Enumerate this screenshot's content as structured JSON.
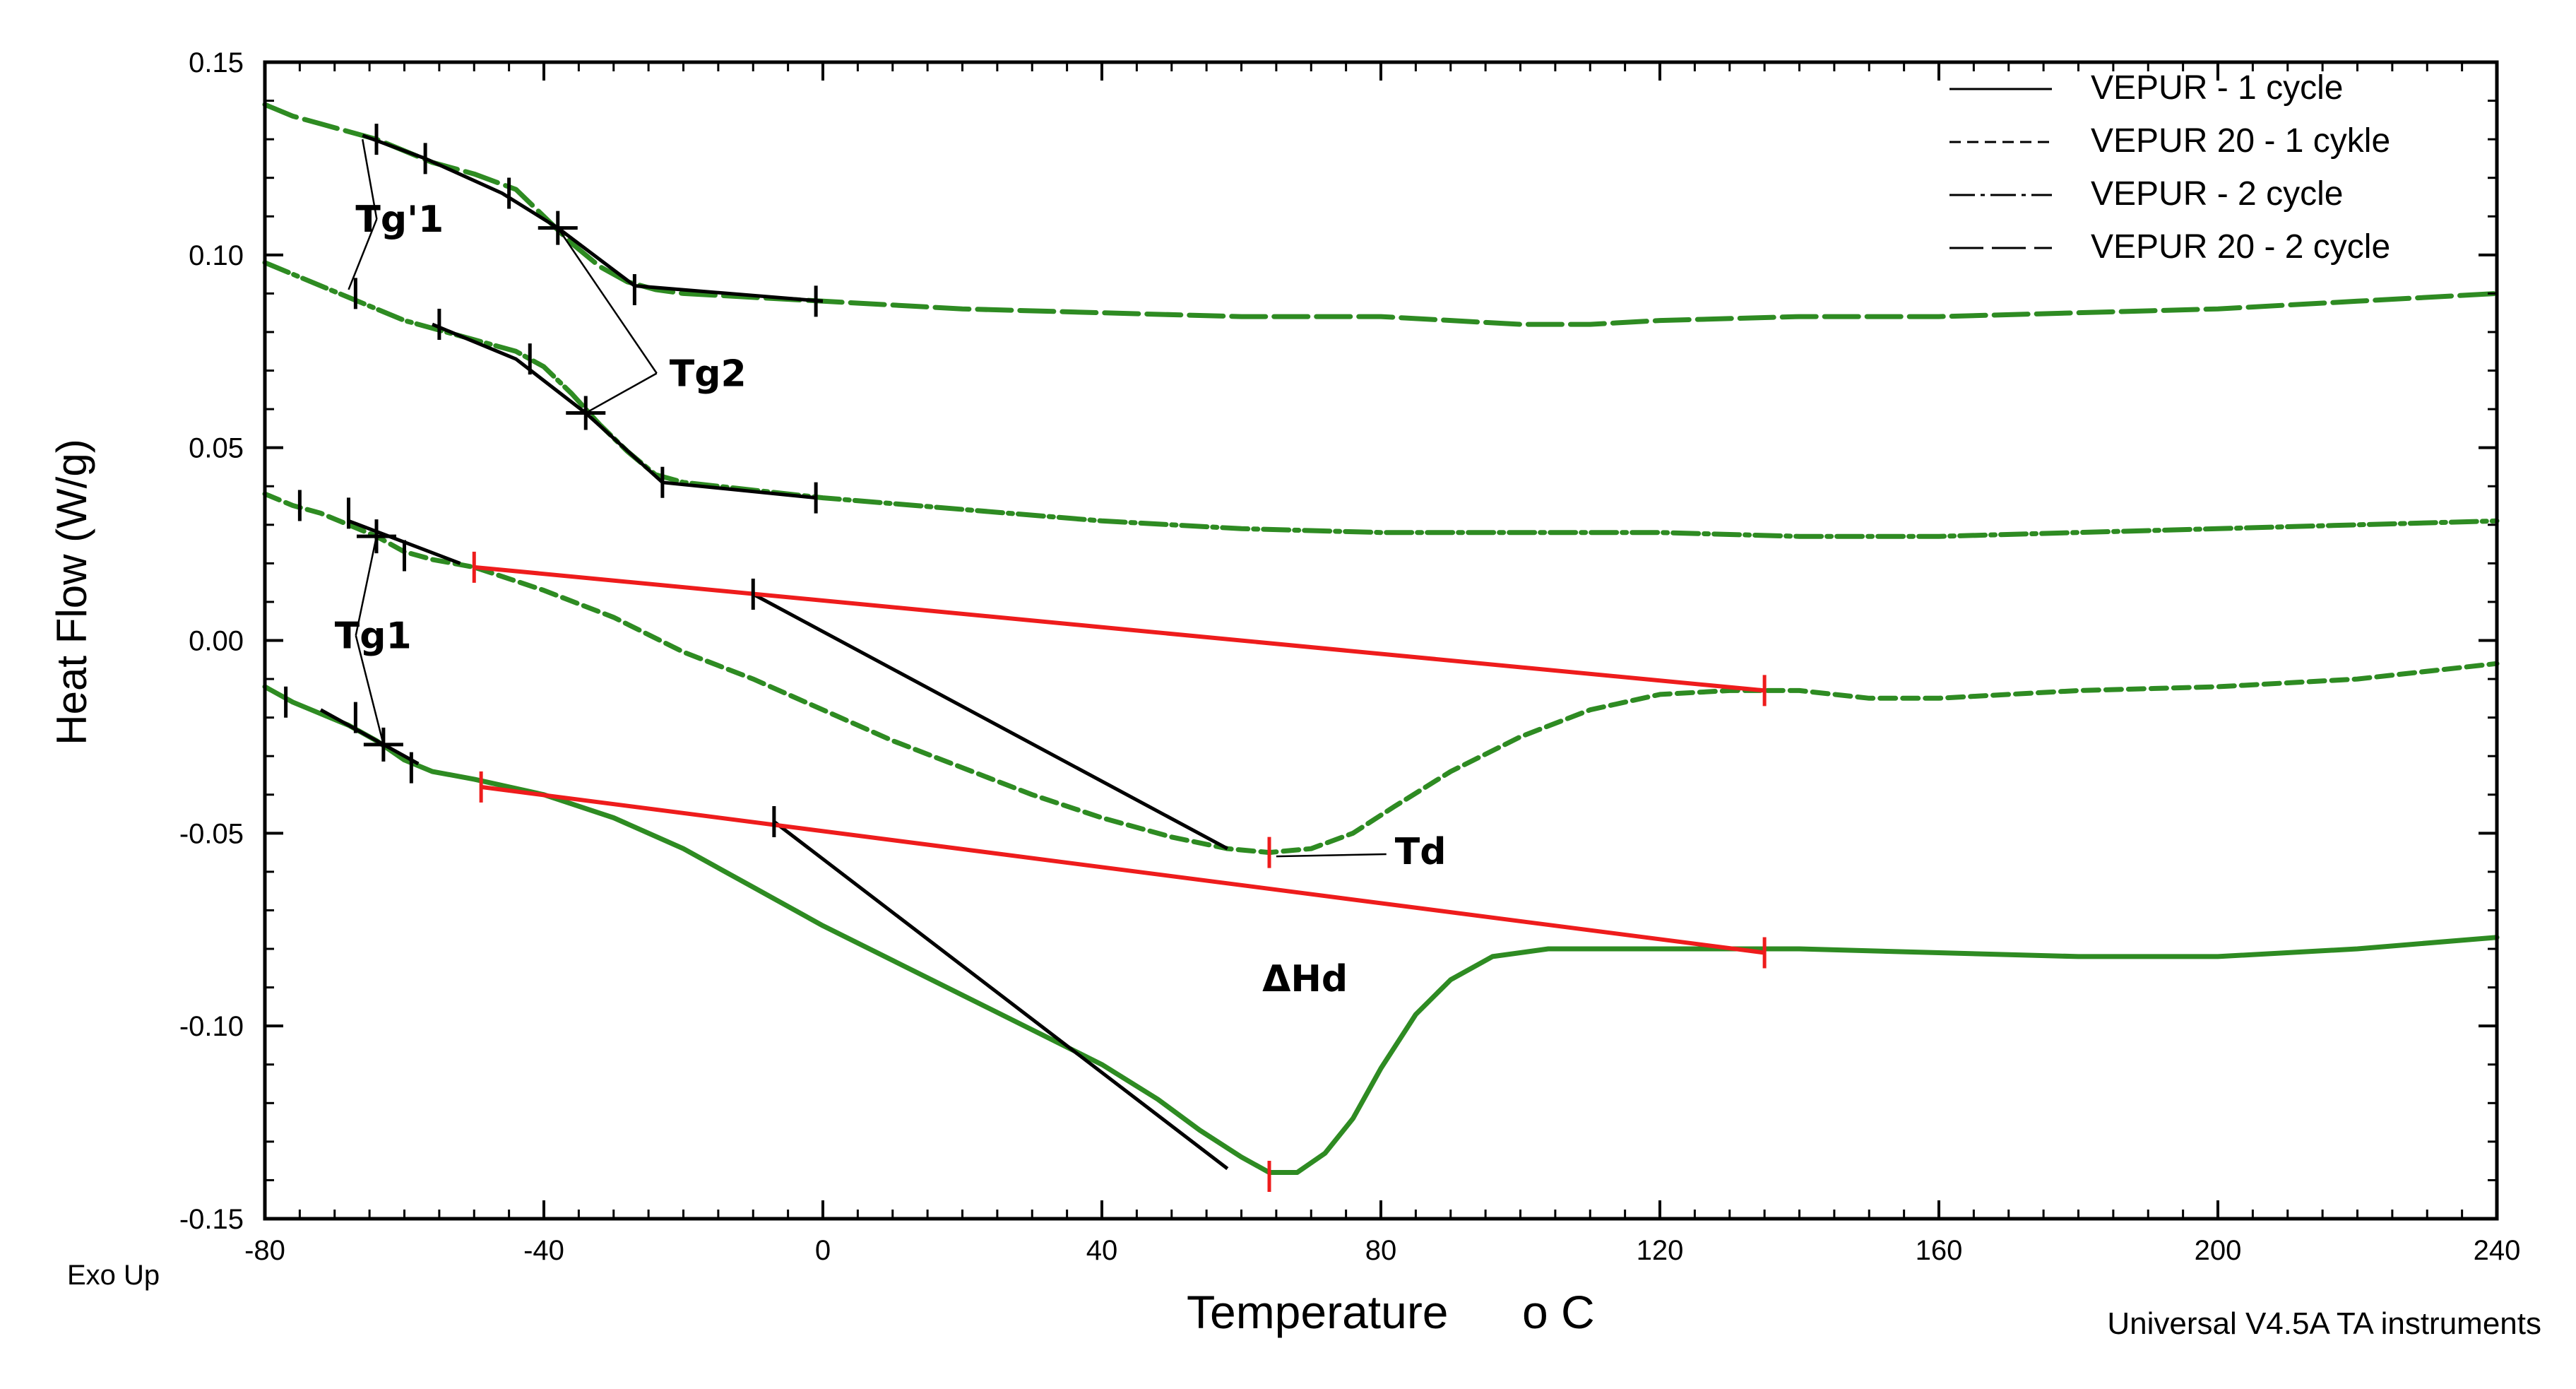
{
  "chart_data": {
    "type": "line",
    "title": "",
    "xlabel": "Temperature",
    "xlabel_unit": "o C",
    "ylabel": "Heat Flow (W/g)",
    "corner_label": "Exo Up",
    "footer": "Universal V4.5A TA instruments",
    "xlim": [
      -80,
      240
    ],
    "ylim": [
      -0.15,
      0.15
    ],
    "x_ticks": [
      -80,
      -40,
      0,
      40,
      80,
      120,
      160,
      200,
      240
    ],
    "x_tick_labels": [
      "-80",
      "-40",
      "0",
      "40",
      "80",
      "120",
      "160",
      "200",
      "240"
    ],
    "y_ticks": [
      0.15,
      0.1,
      0.05,
      0.0,
      -0.05,
      -0.1,
      -0.15
    ],
    "y_tick_labels": [
      "0.15",
      "0.10",
      "0.05",
      "0.00",
      "-0.05",
      "-0.10",
      "-0.15"
    ],
    "legend_position": "top-right",
    "series_color": "#2e8b22",
    "construction_color": "#000000",
    "baseline_color": "#ee1c1c",
    "series": [
      {
        "name": "VEPUR  - 1 cycle",
        "dash": "solid",
        "points": [
          [
            -80,
            -0.012
          ],
          [
            -76,
            -0.016
          ],
          [
            -72,
            -0.019
          ],
          [
            -68,
            -0.022
          ],
          [
            -64,
            -0.026
          ],
          [
            -60,
            -0.031
          ],
          [
            -56,
            -0.034
          ],
          [
            -50,
            -0.036
          ],
          [
            -40,
            -0.04
          ],
          [
            -30,
            -0.046
          ],
          [
            -20,
            -0.054
          ],
          [
            -10,
            -0.064
          ],
          [
            0,
            -0.074
          ],
          [
            10,
            -0.083
          ],
          [
            20,
            -0.092
          ],
          [
            30,
            -0.101
          ],
          [
            40,
            -0.11
          ],
          [
            48,
            -0.119
          ],
          [
            54,
            -0.127
          ],
          [
            60,
            -0.134
          ],
          [
            64,
            -0.138
          ],
          [
            68,
            -0.138
          ],
          [
            72,
            -0.133
          ],
          [
            76,
            -0.124
          ],
          [
            80,
            -0.111
          ],
          [
            85,
            -0.097
          ],
          [
            90,
            -0.088
          ],
          [
            96,
            -0.082
          ],
          [
            104,
            -0.08
          ],
          [
            120,
            -0.08
          ],
          [
            140,
            -0.08
          ],
          [
            160,
            -0.081
          ],
          [
            180,
            -0.082
          ],
          [
            200,
            -0.082
          ],
          [
            220,
            -0.08
          ],
          [
            240,
            -0.077
          ]
        ]
      },
      {
        "name": "VEPUR 20 - 1 cykle",
        "dash": "dashed",
        "points": [
          [
            -80,
            0.038
          ],
          [
            -76,
            0.035
          ],
          [
            -72,
            0.033
          ],
          [
            -68,
            0.03
          ],
          [
            -64,
            0.027
          ],
          [
            -60,
            0.023
          ],
          [
            -56,
            0.021
          ],
          [
            -50,
            0.019
          ],
          [
            -40,
            0.013
          ],
          [
            -30,
            0.006
          ],
          [
            -20,
            -0.003
          ],
          [
            -10,
            -0.01
          ],
          [
            0,
            -0.018
          ],
          [
            10,
            -0.026
          ],
          [
            20,
            -0.033
          ],
          [
            30,
            -0.04
          ],
          [
            40,
            -0.046
          ],
          [
            50,
            -0.051
          ],
          [
            58,
            -0.054
          ],
          [
            64,
            -0.055
          ],
          [
            70,
            -0.054
          ],
          [
            76,
            -0.05
          ],
          [
            82,
            -0.043
          ],
          [
            90,
            -0.034
          ],
          [
            100,
            -0.025
          ],
          [
            110,
            -0.018
          ],
          [
            120,
            -0.014
          ],
          [
            130,
            -0.013
          ],
          [
            140,
            -0.013
          ],
          [
            150,
            -0.015
          ],
          [
            160,
            -0.015
          ],
          [
            180,
            -0.013
          ],
          [
            200,
            -0.012
          ],
          [
            220,
            -0.01
          ],
          [
            240,
            -0.006
          ]
        ]
      },
      {
        "name": "VEPUR - 2 cycle",
        "dash": "dash-dot",
        "points": [
          [
            -80,
            0.098
          ],
          [
            -76,
            0.095
          ],
          [
            -72,
            0.092
          ],
          [
            -68,
            0.089
          ],
          [
            -64,
            0.086
          ],
          [
            -60,
            0.083
          ],
          [
            -56,
            0.081
          ],
          [
            -50,
            0.078
          ],
          [
            -44,
            0.075
          ],
          [
            -40,
            0.071
          ],
          [
            -36,
            0.064
          ],
          [
            -32,
            0.056
          ],
          [
            -28,
            0.049
          ],
          [
            -24,
            0.043
          ],
          [
            -20,
            0.041
          ],
          [
            -10,
            0.039
          ],
          [
            0,
            0.037
          ],
          [
            20,
            0.034
          ],
          [
            40,
            0.031
          ],
          [
            60,
            0.029
          ],
          [
            80,
            0.028
          ],
          [
            100,
            0.028
          ],
          [
            120,
            0.028
          ],
          [
            140,
            0.027
          ],
          [
            160,
            0.027
          ],
          [
            180,
            0.028
          ],
          [
            200,
            0.029
          ],
          [
            220,
            0.03
          ],
          [
            240,
            0.031
          ]
        ]
      },
      {
        "name": "VEPUR  20 - 2 cycle",
        "dash": "long-dash",
        "points": [
          [
            -80,
            0.139
          ],
          [
            -76,
            0.136
          ],
          [
            -72,
            0.134
          ],
          [
            -68,
            0.132
          ],
          [
            -64,
            0.13
          ],
          [
            -60,
            0.127
          ],
          [
            -56,
            0.124
          ],
          [
            -50,
            0.121
          ],
          [
            -44,
            0.117
          ],
          [
            -40,
            0.11
          ],
          [
            -36,
            0.103
          ],
          [
            -32,
            0.097
          ],
          [
            -28,
            0.093
          ],
          [
            -24,
            0.091
          ],
          [
            -20,
            0.09
          ],
          [
            -10,
            0.089
          ],
          [
            0,
            0.088
          ],
          [
            20,
            0.086
          ],
          [
            40,
            0.085
          ],
          [
            60,
            0.084
          ],
          [
            80,
            0.084
          ],
          [
            100,
            0.082
          ],
          [
            110,
            0.082
          ],
          [
            120,
            0.083
          ],
          [
            140,
            0.084
          ],
          [
            160,
            0.084
          ],
          [
            180,
            0.085
          ],
          [
            200,
            0.086
          ],
          [
            220,
            0.088
          ],
          [
            240,
            0.09
          ]
        ]
      }
    ],
    "construction_lines": [
      {
        "name": "tg1-bottom-onset",
        "color": "black",
        "points": [
          [
            -72,
            -0.018
          ],
          [
            -58,
            -0.032
          ]
        ]
      },
      {
        "name": "tg1-top-onset",
        "color": "black",
        "points": [
          [
            -68,
            0.031
          ],
          [
            -52,
            0.02
          ]
        ]
      },
      {
        "name": "tg2-lower-curve-tangent",
        "color": "black",
        "points": [
          [
            -56,
            0.082
          ],
          [
            -44,
            0.073
          ],
          [
            -34,
            0.059
          ],
          [
            -23,
            0.041
          ],
          [
            -1,
            0.037
          ]
        ]
      },
      {
        "name": "tg2-upper-curve-tangent",
        "color": "black",
        "points": [
          [
            -66,
            0.131
          ],
          [
            -57,
            0.125
          ],
          [
            -46,
            0.116
          ],
          [
            -38,
            0.107
          ],
          [
            -27,
            0.092
          ],
          [
            0,
            0.088
          ]
        ]
      },
      {
        "name": "td-dashed-tangent",
        "color": "black",
        "points": [
          [
            -10,
            0.012
          ],
          [
            58,
            -0.054
          ]
        ]
      },
      {
        "name": "td-solid-tangent",
        "color": "black",
        "points": [
          [
            -7,
            -0.047
          ],
          [
            58,
            -0.137
          ]
        ]
      },
      {
        "name": "dashed-baseline",
        "color": "red",
        "points": [
          [
            -50,
            0.019
          ],
          [
            135,
            -0.013
          ]
        ]
      },
      {
        "name": "solid-baseline",
        "color": "red",
        "points": [
          [
            -49,
            -0.038
          ],
          [
            135,
            -0.081
          ]
        ]
      }
    ],
    "markers": [
      {
        "kind": "tick",
        "color": "black",
        "x": -64,
        "y": 0.13
      },
      {
        "kind": "tick",
        "color": "black",
        "x": -57,
        "y": 0.125
      },
      {
        "kind": "tick",
        "color": "black",
        "x": -45,
        "y": 0.116
      },
      {
        "kind": "cross",
        "color": "black",
        "x": -38,
        "y": 0.107
      },
      {
        "kind": "tick",
        "color": "black",
        "x": -27,
        "y": 0.091
      },
      {
        "kind": "tick",
        "color": "black",
        "x": -1,
        "y": 0.088
      },
      {
        "kind": "tick",
        "color": "black",
        "x": -67,
        "y": 0.09
      },
      {
        "kind": "tick",
        "color": "black",
        "x": -55,
        "y": 0.082
      },
      {
        "kind": "tick",
        "color": "black",
        "x": -42,
        "y": 0.073
      },
      {
        "kind": "cross",
        "color": "black",
        "x": -34,
        "y": 0.059
      },
      {
        "kind": "tick",
        "color": "black",
        "x": -23,
        "y": 0.041
      },
      {
        "kind": "tick",
        "color": "black",
        "x": -1,
        "y": 0.037
      },
      {
        "kind": "tick",
        "color": "black",
        "x": -75,
        "y": 0.035
      },
      {
        "kind": "tick",
        "color": "black",
        "x": -68,
        "y": 0.033
      },
      {
        "kind": "cross",
        "color": "black",
        "x": -64,
        "y": 0.027
      },
      {
        "kind": "tick",
        "color": "black",
        "x": -60,
        "y": 0.022
      },
      {
        "kind": "tick",
        "color": "black",
        "x": -10,
        "y": 0.012
      },
      {
        "kind": "tick",
        "color": "black",
        "x": -77,
        "y": -0.016
      },
      {
        "kind": "tick",
        "color": "black",
        "x": -67,
        "y": -0.02
      },
      {
        "kind": "cross",
        "color": "black",
        "x": -63,
        "y": -0.027
      },
      {
        "kind": "tick",
        "color": "black",
        "x": -59,
        "y": -0.033
      },
      {
        "kind": "tick",
        "color": "black",
        "x": -7,
        "y": -0.047
      },
      {
        "kind": "tick",
        "color": "red",
        "x": -50,
        "y": 0.019
      },
      {
        "kind": "tick",
        "color": "red",
        "x": 135,
        "y": -0.013
      },
      {
        "kind": "tick",
        "color": "red",
        "x": 64,
        "y": -0.055
      },
      {
        "kind": "tick",
        "color": "red",
        "x": -49,
        "y": -0.038
      },
      {
        "kind": "tick",
        "color": "red",
        "x": 135,
        "y": -0.081
      },
      {
        "kind": "tick",
        "color": "red",
        "x": 64,
        "y": -0.139
      }
    ],
    "annotations": [
      {
        "text": "Tg'1",
        "x": -67,
        "y": 0.106,
        "pointers": [
          [
            -66,
            0.13
          ],
          [
            -68,
            0.091
          ]
        ]
      },
      {
        "text": "Tg2",
        "x": -22,
        "y": 0.066,
        "pointers": [
          [
            -38,
            0.107
          ],
          [
            -34,
            0.059
          ]
        ]
      },
      {
        "text": "Tg1",
        "x": -70,
        "y": -0.002,
        "pointers": [
          [
            -64,
            0.027
          ],
          [
            -63,
            -0.027
          ]
        ]
      },
      {
        "text": "Td",
        "x": 82,
        "y": -0.058,
        "pointers": [
          [
            65,
            -0.056
          ]
        ]
      },
      {
        "text": "ΔHd",
        "x": 63,
        "y": -0.091,
        "pointers": []
      }
    ]
  }
}
